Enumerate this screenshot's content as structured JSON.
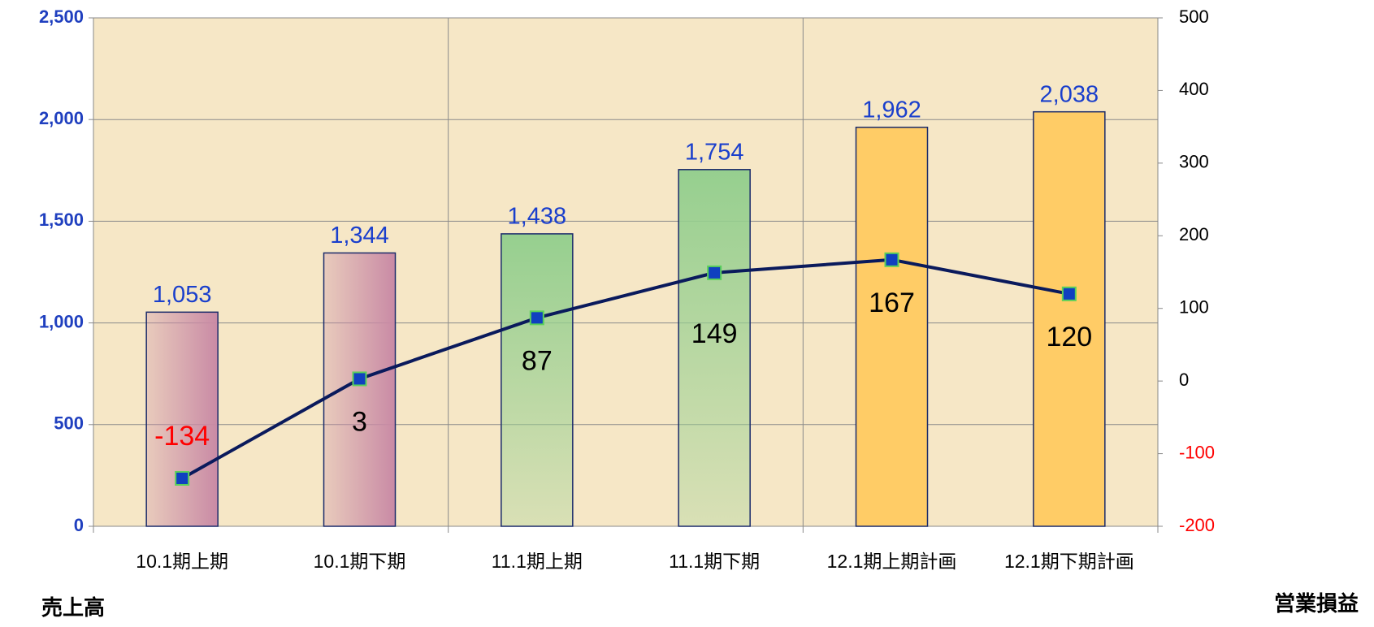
{
  "chart_data": {
    "type": "bar-line",
    "categories": [
      "10.1期上期",
      "10.1期下期",
      "11.1期上期",
      "11.1期下期",
      "12.1期上期計画",
      "12.1期下期計画"
    ],
    "y_label": "売上高",
    "y2_label": "営業損益",
    "series": [
      {
        "type": "bar",
        "values": [
          1053,
          1344,
          1438,
          1754,
          1962,
          2038
        ],
        "value_labels": [
          "1,053",
          "1,344",
          "1,438",
          "1,754",
          "1,962",
          "2,038"
        ],
        "colors": [
          "#c98aa5",
          "#c98aa5",
          "#96cf8f",
          "#96cf8f",
          "#ffcc66",
          "#ffcc66"
        ],
        "label_color": "#1a3fcc"
      },
      {
        "type": "line",
        "axis": "y2",
        "values": [
          -134,
          3,
          87,
          149,
          167,
          120
        ],
        "color": "#0a1a5c",
        "marker_color": "#1040c0",
        "marker_edge": "#5ad05a",
        "label_color": "#000000",
        "negative_color": "#ff0000"
      }
    ],
    "ylim": [
      0,
      2500
    ],
    "yticks": [
      0,
      500,
      {
        "value": 1000,
        "label": "1,000"
      },
      {
        "value": 1500,
        "label": "1,500"
      },
      {
        "value": 2000,
        "label": "2,000"
      },
      {
        "value": 2500,
        "label": "2,500"
      }
    ],
    "y2lim": [
      -200,
      500
    ],
    "y2ticks": [
      -200,
      -100,
      0,
      100,
      200,
      300,
      400,
      500
    ],
    "grid": true
  }
}
